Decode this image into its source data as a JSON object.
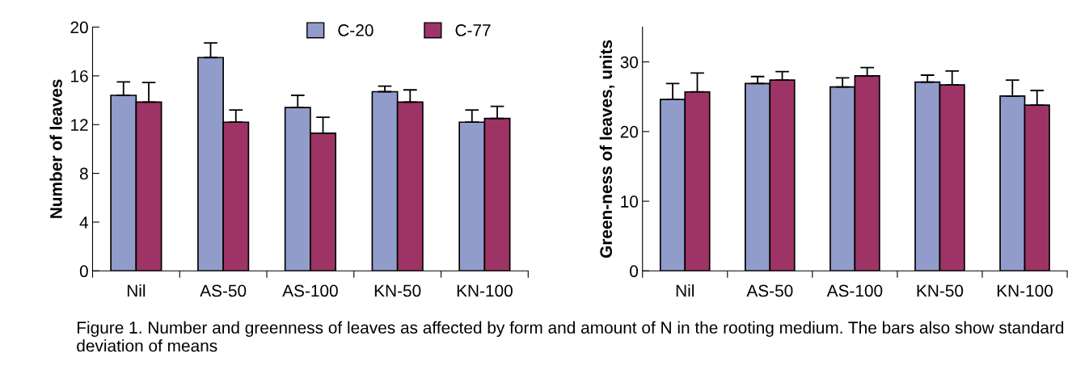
{
  "chart_data": [
    {
      "type": "bar",
      "ylabel": "Number of leaves",
      "categories": [
        "Nil",
        "AS-50",
        "AS-100",
        "KN-50",
        "KN-100"
      ],
      "ylim": [
        0,
        20
      ],
      "yticks": [
        0,
        4,
        8,
        12,
        16,
        20
      ],
      "grid": false,
      "legend": "top right",
      "series": [
        {
          "name": "C-20",
          "color": "#929ccb",
          "values": [
            14.4,
            17.5,
            13.4,
            14.7,
            12.2
          ],
          "errors": [
            [
              14.4,
              15.5
            ],
            [
              17.5,
              18.7
            ],
            [
              13.4,
              14.4
            ],
            [
              14.7,
              15.15
            ],
            [
              12.2,
              13.2
            ]
          ]
        },
        {
          "name": "C-77",
          "color": "#9e3465",
          "values": [
            13.85,
            12.2,
            11.3,
            13.85,
            12.5
          ],
          "errors": [
            [
              13.85,
              15.45
            ],
            [
              12.2,
              13.2
            ],
            [
              11.3,
              12.6
            ],
            [
              13.85,
              14.85
            ],
            [
              12.5,
              13.5
            ]
          ]
        }
      ],
      "annotations": [
        "Figure 1. Number and greenness of leaves as affected by form and amount of N in the rooting medium. The bars also show standard deviation of means"
      ]
    },
    {
      "type": "bar",
      "ylabel": "Green-ness of leaves, units",
      "categories": [
        "Nil",
        "AS-50",
        "AS-100",
        "KN-50",
        "KN-100"
      ],
      "ylim": [
        0,
        35
      ],
      "yticks": [
        0,
        10,
        20,
        30
      ],
      "grid": false,
      "legend": false,
      "series": [
        {
          "color": "#929ccb",
          "values": [
            24.6,
            26.9,
            26.4,
            27.1,
            25.1
          ],
          "errors": [
            [
              24.6,
              26.9
            ],
            [
              26.9,
              27.9
            ],
            [
              26.4,
              27.7
            ],
            [
              27.1,
              28.1
            ],
            [
              25.1,
              27.4
            ]
          ]
        },
        {
          "color": "#9e3465",
          "values": [
            25.7,
            27.4,
            28.0,
            26.7,
            23.8
          ],
          "errors": [
            [
              25.7,
              28.4
            ],
            [
              27.4,
              28.6
            ],
            [
              28.0,
              29.2
            ],
            [
              26.7,
              28.7
            ],
            [
              23.8,
              25.9
            ]
          ]
        }
      ]
    }
  ]
}
